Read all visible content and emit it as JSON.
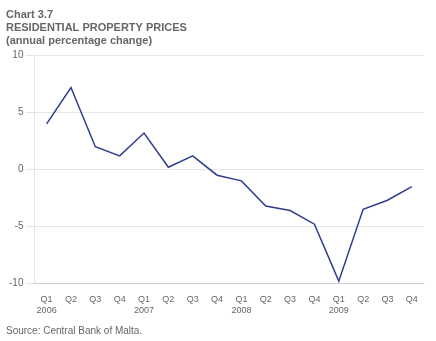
{
  "chart_data": {
    "type": "line",
    "title": "Chart 3.7",
    "subtitle": [
      "RESIDENTIAL PROPERTY PRICES",
      "(annual percentage change)"
    ],
    "annotations": [
      "Source: Central Bank of Malta."
    ],
    "categories": [
      "Q1\n2006",
      "Q2",
      "Q3",
      "Q4",
      "Q1\n2007",
      "Q2",
      "Q3",
      "Q4",
      "Q1\n2008",
      "Q2",
      "Q3",
      "Q4",
      "Q1\n2009",
      "Q2",
      "Q3",
      "Q4"
    ],
    "values": [
      4.0,
      7.2,
      2.0,
      1.2,
      3.2,
      0.2,
      1.2,
      -0.5,
      -1.0,
      -3.2,
      -3.6,
      -4.8,
      -9.8,
      -3.5,
      -2.7,
      -1.5
    ],
    "color": "#2e3d8f",
    "ylim": [
      -10,
      10
    ],
    "yticks": [
      -10,
      -5,
      0,
      5,
      10
    ],
    "grid": true
  }
}
